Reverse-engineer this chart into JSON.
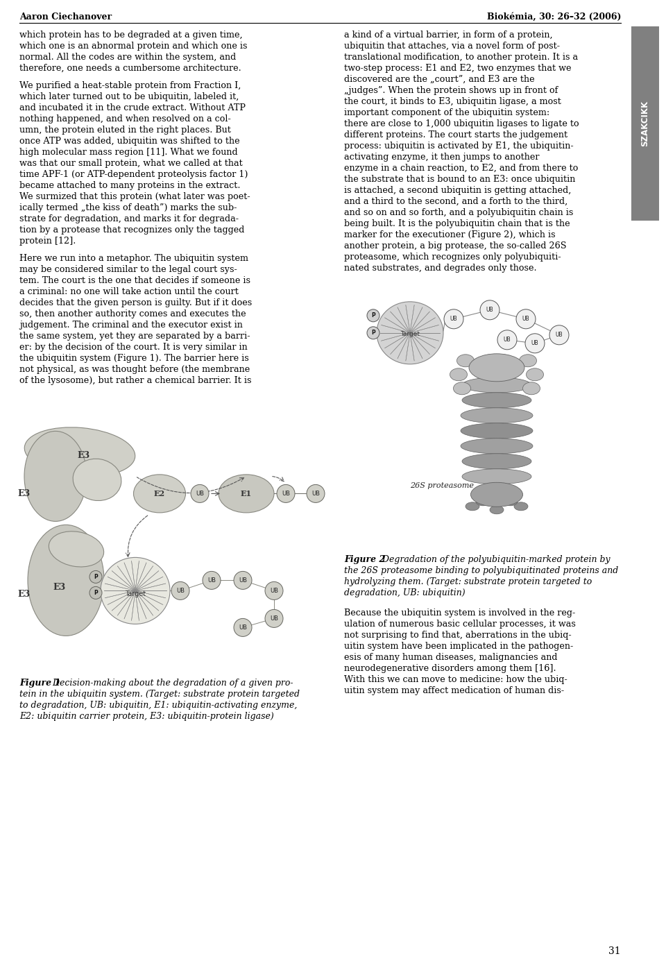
{
  "title_left": "Aaron Ciechanover",
  "title_right": "Biokémia, 30: 26–32 (2006)",
  "side_label": "SZAKCIKK",
  "page_number": "31",
  "background": "#ffffff",
  "left_paragraphs": [
    "which protein has to be degraded at a given time,\nwhich one is an abnormal protein and which one is\nnormal. All the codes are within the system, and\ntherefore, one needs a cumbersome architecture.",
    "We purified a heat-stable protein from Fraction I,\nwhich later turned out to be ubiquitin, labeled it,\nand incubated it in the crude extract. Without ATP\nnothing happened, and when resolved on a col-\numn, the protein eluted in the right places. But\nonce ATP was added, ubiquitin was shifted to the\nhigh molecular mass region [11]. What we found\nwas that our small protein, what we called at that\ntime APF-1 (or ATP-dependent proteolysis factor 1)\nbecame attached to many proteins in the extract.\nWe surmized that this protein (what later was poet-\nically termed „the kiss of death”) marks the sub-\nstrate for degradation, and marks it for degrada-\ntion by a protease that recognizes only the tagged\nprotein [12].",
    "Here we run into a metaphor. The ubiquitin system\nmay be considered similar to the legal court sys-\ntem. The court is the one that decides if someone is\na criminal: no one will take action until the court\ndecides that the given person is guilty. But if it does\nso, then another authority comes and executes the\njudgement. The criminal and the executor exist in\nthe same system, yet they are separated by a barri-\ner: by the decision of the court. It is very similar in\nthe ubiquitin system (Figure 1). The barrier here is\nnot physical, as was thought before (the membrane\nof the lysosome), but rather a chemical barrier. It is"
  ],
  "right_paragraphs": [
    "a kind of a virtual barrier, in form of a protein,\nubiquitin that attaches, via a novel form of post-\ntranslational modification, to another protein. It is a\ntwo-step process: E1 and E2, two enzymes that we\ndiscovered are the „court”, and E3 are the\n„judges”. When the protein shows up in front of\nthe court, it binds to E3, ubiquitin ligase, a most\nimportant component of the ubiquitin system:\nthere are close to 1,000 ubiquitin ligases to ligate to\ndifferent proteins. The court starts the judgement\nprocess: ubiquitin is activated by E1, the ubiquitin-\nactivating enzyme, it then jumps to another\nenzyme in a chain reaction, to E2, and from there to\nthe substrate that is bound to an E3: once ubiquitin\nis attached, a second ubiquitin is getting attached,\nand a third to the second, and a forth to the third,\nand so on and so forth, and a polyubiquitin chain is\nbeing built. It is the polyubiquitin chain that is the\nmarker for the executioner (Figure 2), which is\nanother protein, a big protease, the so-called 26S\nproteasome, which recognizes only polyubiquiti-\nnated substrates, and degrades only those."
  ],
  "right_after_fig2": [
    "Because the ubiquitin system is involved in the reg-\nulation of numerous basic cellular processes, it was\nnot surprising to find that, aberrations in the ubiq-\nuitin system have been implicated in the pathogen-\nesis of many human diseases, malignancies and\nneurodegenerative disorders among them [16].\nWith this we can move to medicine: how the ubiq-\nuitin system may affect medication of human dis-"
  ],
  "fig1_caption_bold": "Figure 1",
  "fig1_caption_italic": "  Decision-making about the degradation of a given pro-\ntein in the ubiquitin system. (Target: substrate protein targeted\nto degradation, UB: ubiquitin, E1: ubiquitin-activating enzyme,\nE2: ubiquitin carrier protein, E3: ubiquitin-protein ligase)",
  "fig2_caption_bold": "Figure 2",
  "fig2_caption_italic": "  Degradation of the polyubiquitin-marked protein by\nthe 26S proteasome binding to polyubiquitinated proteins and\nhydrolyzing them. (Target: substrate protein targeted to\ndegradation, UB: ubiquitin)"
}
